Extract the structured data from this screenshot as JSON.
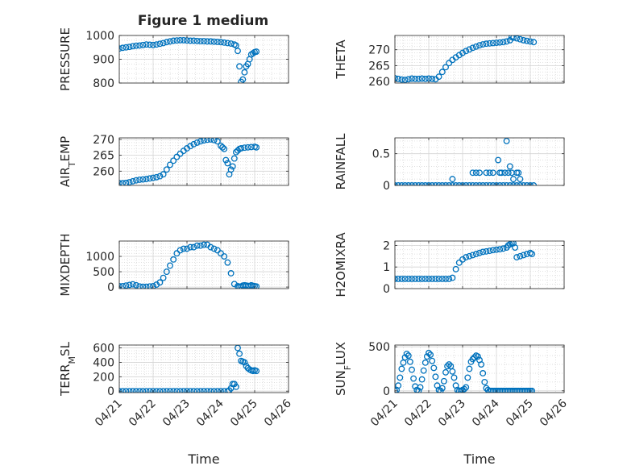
{
  "figure": {
    "title": "Figure 1 medium",
    "marker_color": "#0072bd",
    "grid_color": "#d4d4d4",
    "axis_color": "#262626",
    "x_tick_labels": [
      "04/21",
      "04/22",
      "04/23",
      "04/24",
      "04/25",
      "04/26"
    ],
    "x_label": "Time"
  },
  "chart_data": [
    {
      "type": "scatter",
      "ylabel": "PRESSURE",
      "xlim": [
        0,
        5
      ],
      "ylim": [
        800,
        1000
      ],
      "yticks": [
        800,
        900,
        1000
      ],
      "x": [
        0,
        0.1,
        0.2,
        0.3,
        0.4,
        0.5,
        0.6,
        0.7,
        0.8,
        0.9,
        1.0,
        1.1,
        1.2,
        1.3,
        1.4,
        1.5,
        1.6,
        1.7,
        1.8,
        1.9,
        2.0,
        2.1,
        2.2,
        2.3,
        2.4,
        2.5,
        2.6,
        2.7,
        2.8,
        2.9,
        3.0,
        3.1,
        3.2,
        3.3,
        3.4,
        3.45,
        3.5,
        3.55,
        3.6,
        3.65,
        3.7,
        3.75,
        3.8,
        3.85,
        3.9,
        3.95,
        4.0,
        4.05
      ],
      "y": [
        945,
        948,
        950,
        952,
        955,
        957,
        958,
        960,
        962,
        961,
        960,
        962,
        965,
        968,
        972,
        975,
        978,
        979,
        980,
        980,
        979,
        978,
        978,
        977,
        976,
        976,
        975,
        975,
        974,
        973,
        972,
        970,
        968,
        966,
        962,
        958,
        935,
        870,
        805,
        815,
        845,
        870,
        880,
        900,
        920,
        925,
        930,
        932
      ]
    },
    {
      "type": "scatter",
      "ylabel": "THETA",
      "xlim": [
        0,
        5
      ],
      "ylim": [
        259.5,
        274.5
      ],
      "yticks": [
        260,
        265,
        270
      ],
      "x": [
        0,
        0.1,
        0.2,
        0.3,
        0.4,
        0.5,
        0.6,
        0.7,
        0.8,
        0.9,
        1.0,
        1.1,
        1.2,
        1.3,
        1.4,
        1.5,
        1.6,
        1.7,
        1.8,
        1.9,
        2.0,
        2.1,
        2.2,
        2.3,
        2.4,
        2.5,
        2.6,
        2.7,
        2.8,
        2.9,
        3.0,
        3.1,
        3.2,
        3.3,
        3.4,
        3.45,
        3.5,
        3.6,
        3.7,
        3.8,
        3.9,
        4.0,
        4.1
      ],
      "y": [
        261,
        260.8,
        260.6,
        260.5,
        260.7,
        260.9,
        260.8,
        260.8,
        260.9,
        260.8,
        260.9,
        260.8,
        260.7,
        261.5,
        263.0,
        264.5,
        265.8,
        266.8,
        267.6,
        268.3,
        269.0,
        269.6,
        270.1,
        270.6,
        271.0,
        271.4,
        271.7,
        271.9,
        272.0,
        272.1,
        272.2,
        272.3,
        272.4,
        272.6,
        273.0,
        274.0,
        273.8,
        273.6,
        273.3,
        273.0,
        272.8,
        272.6,
        272.4
      ]
    },
    {
      "type": "scatter",
      "ylabel": "AIR_T_EMP",
      "xlim": [
        0,
        5
      ],
      "ylim": [
        255.5,
        270.5
      ],
      "yticks": [
        260,
        265,
        270
      ],
      "x": [
        0,
        0.1,
        0.2,
        0.3,
        0.4,
        0.5,
        0.6,
        0.7,
        0.8,
        0.9,
        1.0,
        1.1,
        1.2,
        1.3,
        1.4,
        1.5,
        1.6,
        1.7,
        1.8,
        1.9,
        2.0,
        2.1,
        2.2,
        2.3,
        2.4,
        2.5,
        2.6,
        2.7,
        2.8,
        2.9,
        3.0,
        3.05,
        3.1,
        3.15,
        3.2,
        3.25,
        3.3,
        3.35,
        3.4,
        3.45,
        3.5,
        3.55,
        3.6,
        3.7,
        3.8,
        3.9,
        4.0,
        4.05
      ],
      "y": [
        256.2,
        256.2,
        256.3,
        256.5,
        256.8,
        257.1,
        257.3,
        257.4,
        257.5,
        257.7,
        257.9,
        258.1,
        258.4,
        259.0,
        260.5,
        262.0,
        263.3,
        264.5,
        265.5,
        266.4,
        267.2,
        267.9,
        268.5,
        269.0,
        269.4,
        269.7,
        269.9,
        270.0,
        269.8,
        269.4,
        268.0,
        267.5,
        267.0,
        263.5,
        262.5,
        259.0,
        260.5,
        261.5,
        264.0,
        266.0,
        266.5,
        267.0,
        267.2,
        267.4,
        267.5,
        267.6,
        267.7,
        267.5
      ]
    },
    {
      "type": "scatter",
      "ylabel": "RAINFALL",
      "xlim": [
        0,
        5
      ],
      "ylim": [
        0,
        0.75
      ],
      "yticks": [
        0,
        0.5
      ],
      "x": [
        0,
        0.1,
        0.2,
        0.3,
        0.4,
        0.5,
        0.6,
        0.7,
        0.8,
        0.9,
        1.0,
        1.1,
        1.2,
        1.3,
        1.4,
        1.5,
        1.6,
        1.7,
        1.8,
        1.9,
        2.0,
        2.1,
        2.2,
        2.3,
        2.4,
        2.5,
        2.6,
        2.7,
        2.8,
        2.9,
        3.0,
        3.1,
        3.2,
        3.3,
        3.4,
        3.5,
        3.6,
        3.7,
        3.8,
        3.9,
        4.0,
        4.1,
        1.7,
        2.3,
        2.4,
        2.5,
        2.7,
        2.8,
        2.9,
        3.05,
        3.1,
        3.15,
        3.25,
        3.3,
        3.35,
        3.4,
        3.45,
        3.5,
        3.6,
        3.65,
        3.7
      ],
      "y": [
        0,
        0,
        0,
        0,
        0,
        0,
        0,
        0,
        0,
        0,
        0,
        0,
        0,
        0,
        0,
        0,
        0,
        0,
        0,
        0,
        0,
        0,
        0,
        0,
        0,
        0,
        0,
        0,
        0,
        0,
        0,
        0,
        0,
        0,
        0,
        0,
        0,
        0,
        0,
        0,
        0,
        0,
        0.1,
        0.2,
        0.2,
        0.2,
        0.2,
        0.2,
        0.2,
        0.4,
        0.2,
        0.2,
        0.2,
        0.7,
        0.2,
        0.3,
        0.2,
        0.1,
        0.2,
        0.2,
        0.1
      ]
    },
    {
      "type": "scatter",
      "ylabel": "MIXDEPTH",
      "xlim": [
        0,
        5
      ],
      "ylim": [
        -50,
        1500
      ],
      "yticks": [
        0,
        500,
        1000
      ],
      "x": [
        0,
        0.1,
        0.2,
        0.3,
        0.4,
        0.5,
        0.6,
        0.7,
        0.8,
        0.9,
        1.0,
        1.1,
        1.2,
        1.3,
        1.4,
        1.5,
        1.6,
        1.7,
        1.8,
        1.9,
        2.0,
        2.1,
        2.2,
        2.3,
        2.4,
        2.5,
        2.6,
        2.7,
        2.8,
        2.9,
        3.0,
        3.1,
        3.2,
        3.3,
        3.4,
        3.5,
        3.55,
        3.6,
        3.65,
        3.7,
        3.75,
        3.8,
        3.85,
        3.9,
        3.95,
        4.0,
        4.05
      ],
      "y": [
        30,
        30,
        50,
        70,
        90,
        60,
        20,
        10,
        10,
        20,
        30,
        80,
        150,
        300,
        500,
        700,
        900,
        1100,
        1200,
        1250,
        1250,
        1300,
        1300,
        1350,
        1350,
        1380,
        1380,
        1300,
        1250,
        1200,
        1100,
        1000,
        800,
        450,
        100,
        30,
        10,
        20,
        50,
        60,
        50,
        40,
        30,
        60,
        40,
        30,
        20
      ]
    },
    {
      "type": "scatter",
      "ylabel": "H2OMIXRA",
      "xlim": [
        0,
        5
      ],
      "ylim": [
        0,
        2.2
      ],
      "yticks": [
        0,
        1,
        2
      ],
      "x": [
        0,
        0.1,
        0.2,
        0.3,
        0.4,
        0.5,
        0.6,
        0.7,
        0.8,
        0.9,
        1.0,
        1.1,
        1.2,
        1.3,
        1.4,
        1.5,
        1.6,
        1.7,
        1.8,
        1.9,
        2.0,
        2.1,
        2.2,
        2.3,
        2.4,
        2.5,
        2.6,
        2.7,
        2.8,
        2.9,
        3.0,
        3.1,
        3.2,
        3.3,
        3.35,
        3.4,
        3.45,
        3.5,
        3.55,
        3.6,
        3.7,
        3.8,
        3.9,
        4.0,
        4.05
      ],
      "y": [
        0.45,
        0.45,
        0.45,
        0.45,
        0.45,
        0.45,
        0.45,
        0.45,
        0.45,
        0.45,
        0.45,
        0.45,
        0.45,
        0.45,
        0.45,
        0.45,
        0.45,
        0.5,
        0.9,
        1.2,
        1.35,
        1.45,
        1.5,
        1.55,
        1.6,
        1.65,
        1.7,
        1.72,
        1.75,
        1.78,
        1.8,
        1.82,
        1.85,
        1.9,
        2.0,
        2.05,
        2.1,
        2.1,
        1.9,
        1.45,
        1.5,
        1.55,
        1.6,
        1.65,
        1.6
      ]
    },
    {
      "type": "scatter",
      "ylabel": "TERR_M_SL",
      "xlim": [
        0,
        5
      ],
      "ylim": [
        -20,
        640
      ],
      "yticks": [
        0,
        200,
        400,
        600
      ],
      "x": [
        0,
        0.1,
        0.2,
        0.3,
        0.4,
        0.5,
        0.6,
        0.7,
        0.8,
        0.9,
        1.0,
        1.1,
        1.2,
        1.3,
        1.4,
        1.5,
        1.6,
        1.7,
        1.8,
        1.9,
        2.0,
        2.1,
        2.2,
        2.3,
        2.4,
        2.5,
        2.6,
        2.7,
        2.8,
        2.9,
        3.0,
        3.1,
        3.2,
        3.25,
        3.3,
        3.35,
        3.4,
        3.45,
        3.5,
        3.55,
        3.6,
        3.65,
        3.7,
        3.75,
        3.8,
        3.85,
        3.9,
        3.95,
        4.0,
        4.05
      ],
      "y": [
        0,
        0,
        0,
        0,
        0,
        0,
        0,
        0,
        0,
        0,
        0,
        0,
        0,
        0,
        0,
        0,
        0,
        0,
        0,
        0,
        0,
        0,
        0,
        0,
        0,
        0,
        0,
        0,
        0,
        0,
        0,
        0,
        0,
        10,
        40,
        100,
        100,
        60,
        600,
        520,
        420,
        410,
        400,
        350,
        320,
        300,
        290,
        280,
        290,
        280
      ]
    },
    {
      "type": "scatter",
      "ylabel": "SUN_F_LUX",
      "xlim": [
        0,
        5
      ],
      "ylim": [
        -20,
        520
      ],
      "yticks": [
        0,
        500
      ],
      "x": [
        0,
        0.05,
        0.1,
        0.15,
        0.2,
        0.25,
        0.3,
        0.35,
        0.4,
        0.45,
        0.5,
        0.55,
        0.6,
        0.65,
        0.7,
        0.75,
        0.8,
        0.85,
        0.9,
        0.95,
        1.0,
        1.05,
        1.1,
        1.15,
        1.2,
        1.25,
        1.3,
        1.35,
        1.4,
        1.45,
        1.5,
        1.55,
        1.6,
        1.65,
        1.7,
        1.75,
        1.8,
        1.85,
        1.9,
        1.95,
        2.0,
        2.05,
        2.1,
        2.15,
        2.2,
        2.25,
        2.3,
        2.35,
        2.4,
        2.45,
        2.5,
        2.55,
        2.6,
        2.65,
        2.7,
        2.75,
        2.8,
        2.85,
        2.9,
        2.95,
        3.0,
        3.05,
        3.1,
        3.15,
        3.2,
        3.25,
        3.3,
        3.35,
        3.4,
        3.45,
        3.5,
        3.55,
        3.6,
        3.65,
        3.7,
        3.75,
        3.8,
        3.85,
        3.9,
        3.95,
        4.0,
        4.05
      ],
      "y": [
        0,
        10,
        60,
        150,
        250,
        320,
        380,
        420,
        400,
        330,
        240,
        140,
        50,
        10,
        0,
        40,
        130,
        230,
        320,
        390,
        430,
        410,
        340,
        260,
        160,
        60,
        10,
        0,
        30,
        110,
        210,
        280,
        300,
        280,
        220,
        150,
        60,
        10,
        0,
        0,
        10,
        20,
        40,
        150,
        250,
        330,
        360,
        380,
        400,
        390,
        350,
        300,
        200,
        100,
        30,
        10,
        0,
        0,
        0,
        0,
        0,
        0,
        0,
        0,
        0,
        0,
        0,
        0,
        0,
        0,
        0,
        0,
        0,
        0,
        0,
        0,
        0,
        0,
        0,
        0,
        0,
        0
      ]
    }
  ]
}
